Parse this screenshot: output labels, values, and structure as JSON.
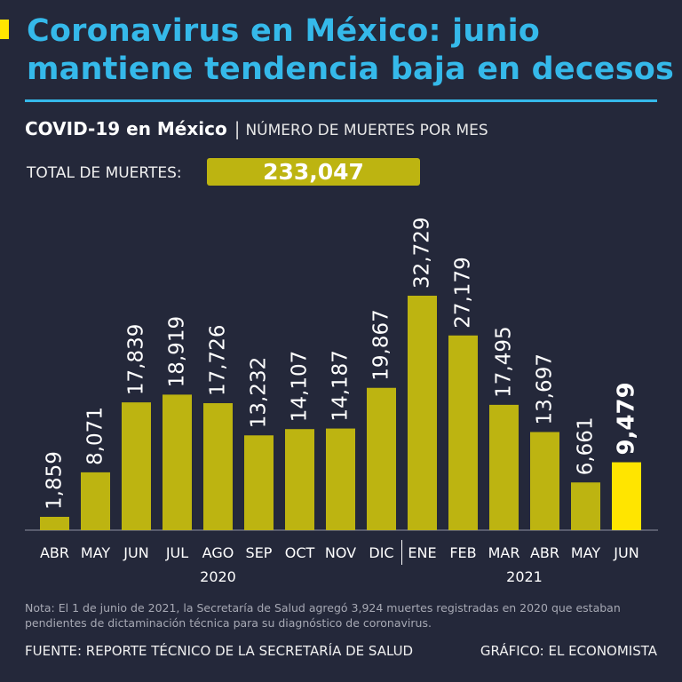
{
  "title": "Coronavirus en México: junio mantiene tendencia baja en decesos",
  "subtitle": {
    "strong": "COVID-19 en México",
    "separator": "|",
    "light": "NÚMERO DE MUERTES POR MES"
  },
  "total": {
    "label": "TOTAL DE MUERTES:",
    "value": "233,047"
  },
  "colors": {
    "background": "#24283a",
    "title": "#35b9ea",
    "bar": "#bdb411",
    "highlight": "#ffe500"
  },
  "chart_data": {
    "type": "bar",
    "title": "COVID-19 en México",
    "ylabel": "NÚMERO DE MUERTES POR MES",
    "categories": [
      "ABR",
      "MAY",
      "JUN",
      "JUL",
      "AGO",
      "SEP",
      "OCT",
      "NOV",
      "DIC",
      "ENE",
      "FEB",
      "MAR",
      "ABR",
      "MAY",
      "JUN"
    ],
    "values": [
      1859,
      8071,
      17839,
      18919,
      17726,
      13232,
      14107,
      14187,
      19867,
      32729,
      27179,
      17495,
      13697,
      6661,
      9479
    ],
    "labels": [
      "1,859",
      "8,071",
      "17,839",
      "18,919",
      "17,726",
      "13,232",
      "14,107",
      "14,187",
      "19,867",
      "32,729",
      "27,179",
      "17,495",
      "13,697",
      "6,661",
      "9,479"
    ],
    "years": [
      {
        "label": "2020",
        "start": 0,
        "end": 8
      },
      {
        "label": "2021",
        "start": 9,
        "end": 14
      }
    ],
    "highlight_index": 14,
    "ylim": [
      0,
      32729
    ],
    "grid": false
  },
  "note": "Nota: El 1 de junio de 2021, la Secretaría de Salud agregó 3,924 muertes registradas en 2020 que estaban pendientes de dictaminación técnica para su diagnóstico de coronavirus.",
  "source": "FUENTE: REPORTE TÉCNICO DE LA SECRETARÍA DE SALUD",
  "credit": "GRÁFICO: EL ECONOMISTA"
}
